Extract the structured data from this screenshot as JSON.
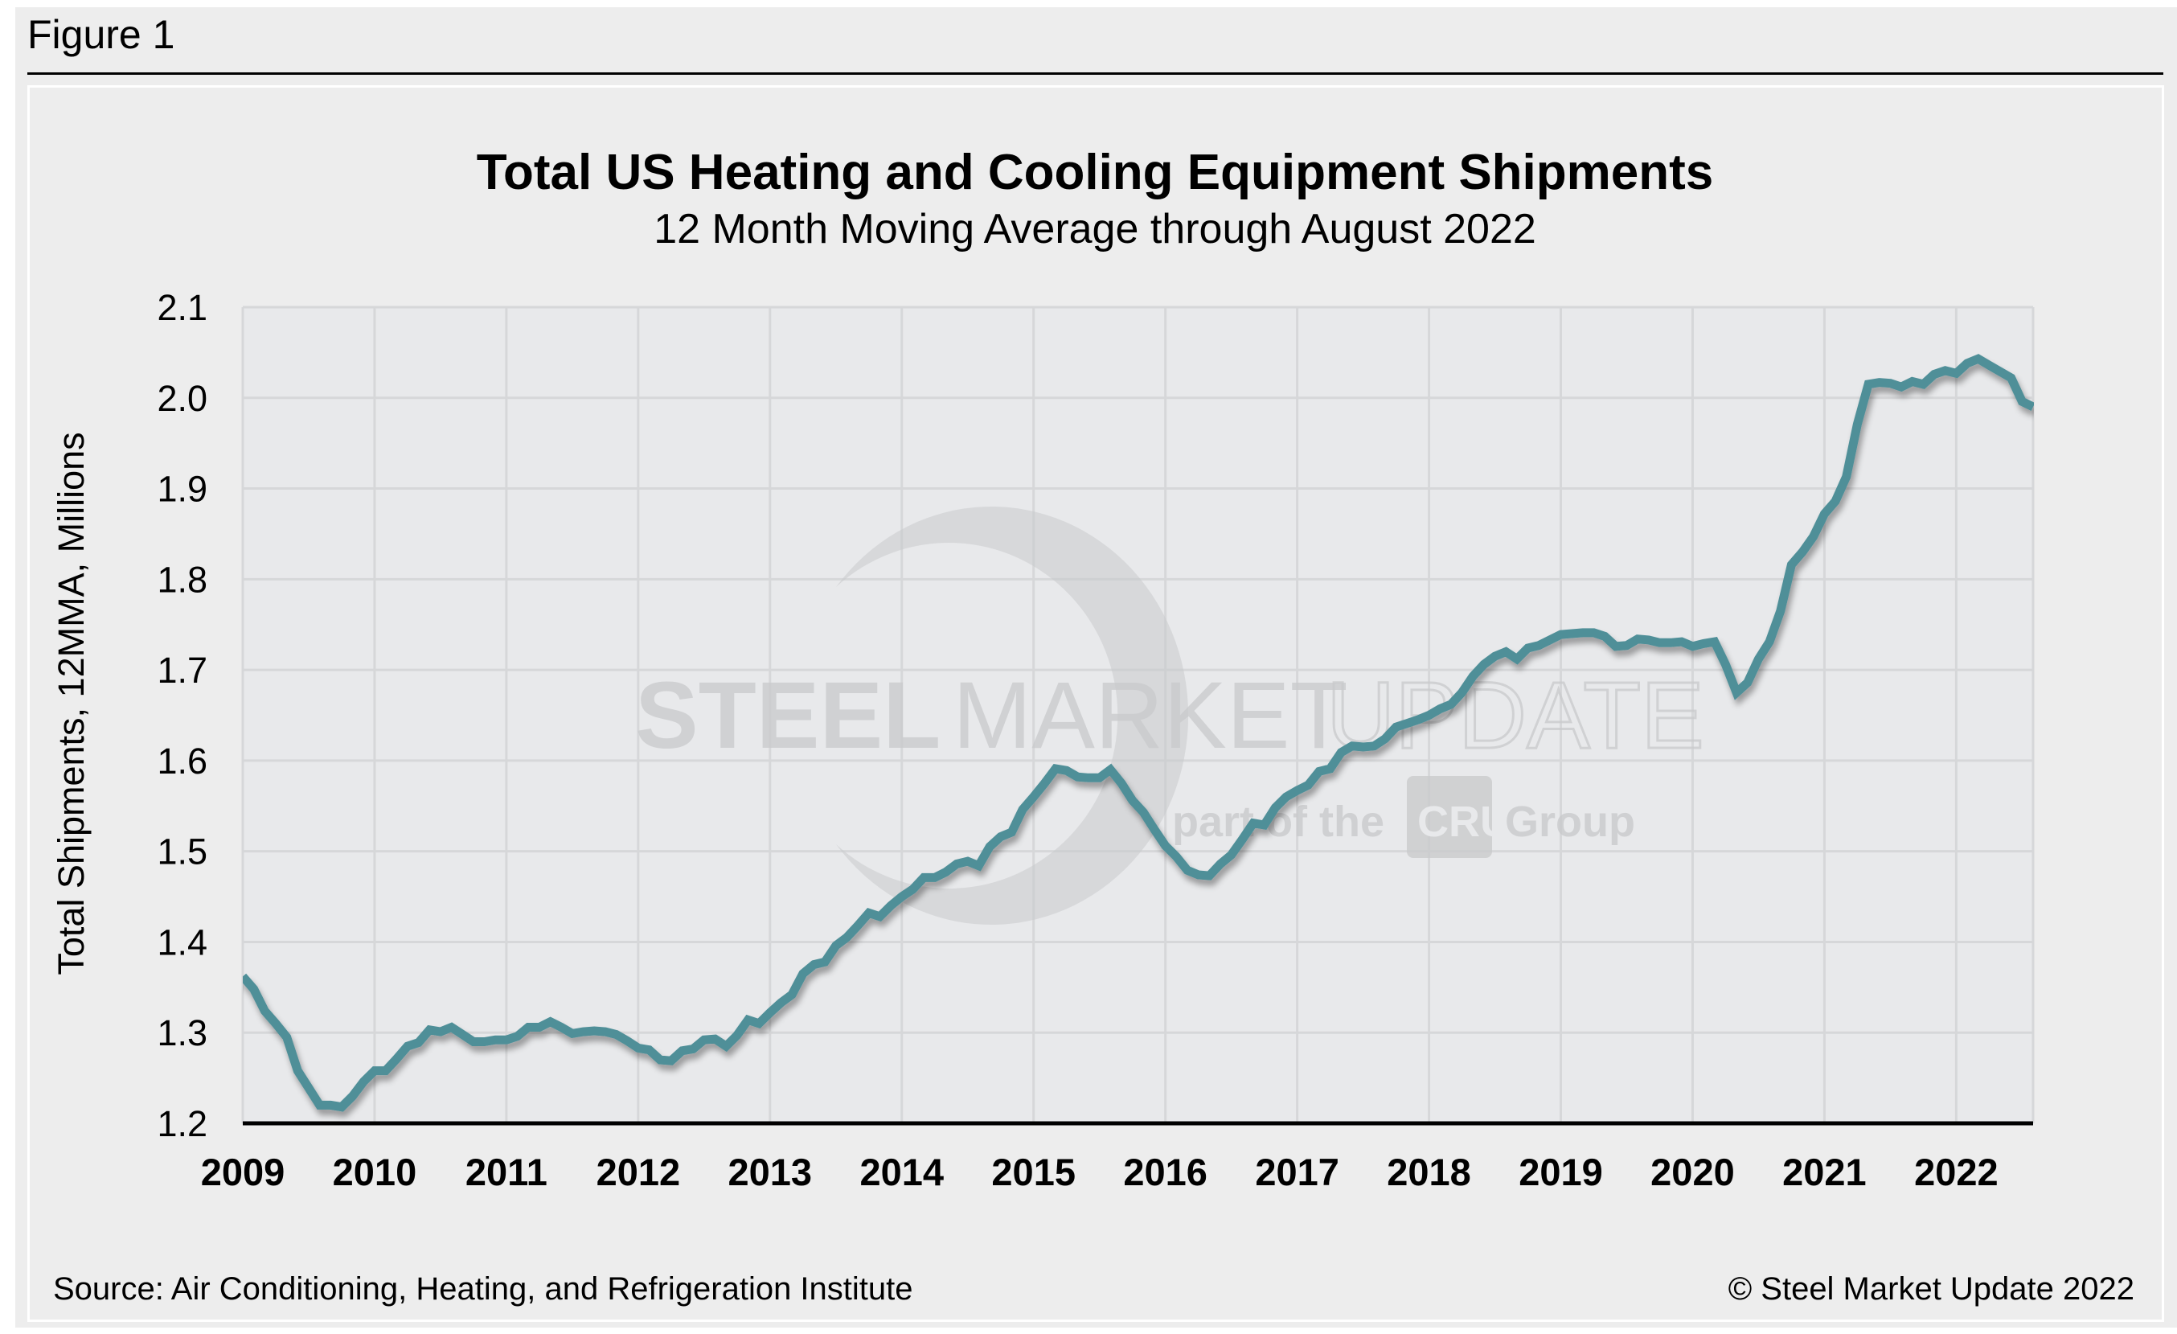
{
  "figure_label": "Figure 1",
  "chart_data": {
    "type": "line",
    "title": "Total US Heating and Cooling Equipment Shipments",
    "subtitle": "12 Month Moving Average through August 2022",
    "xlabel": "",
    "ylabel": "Total Shipments, 12MMA, Millions",
    "ylim": [
      1.2,
      2.1
    ],
    "yticks": [
      "2.1",
      "2.0",
      "1.9",
      "1.8",
      "1.7",
      "1.6",
      "1.5",
      "1.4",
      "1.3",
      "1.2"
    ],
    "ytick_values": [
      2.1,
      2.0,
      1.9,
      1.8,
      1.7,
      1.6,
      1.5,
      1.4,
      1.3,
      1.2
    ],
    "xticks": [
      "2009",
      "2010",
      "2011",
      "2012",
      "2013",
      "2014",
      "2015",
      "2016",
      "2017",
      "2018",
      "2019",
      "2020",
      "2021",
      "2022"
    ],
    "x_start": "2009-01",
    "x_end": "2022-08",
    "x_frequency": "monthly",
    "grid": true,
    "legend": "none",
    "line_color": "#4f8f98",
    "series": [
      {
        "name": "Total Shipments 12MMA",
        "values": [
          1.362,
          1.348,
          1.324,
          1.31,
          1.295,
          1.258,
          1.239,
          1.22,
          1.22,
          1.218,
          1.23,
          1.246,
          1.258,
          1.258,
          1.271,
          1.285,
          1.289,
          1.303,
          1.301,
          1.306,
          1.298,
          1.29,
          1.29,
          1.292,
          1.292,
          1.296,
          1.306,
          1.306,
          1.312,
          1.306,
          1.299,
          1.301,
          1.302,
          1.301,
          1.298,
          1.291,
          1.283,
          1.281,
          1.27,
          1.269,
          1.28,
          1.282,
          1.292,
          1.293,
          1.285,
          1.297,
          1.314,
          1.31,
          1.322,
          1.333,
          1.342,
          1.365,
          1.375,
          1.378,
          1.396,
          1.405,
          1.418,
          1.432,
          1.428,
          1.44,
          1.45,
          1.458,
          1.471,
          1.471,
          1.477,
          1.486,
          1.489,
          1.484,
          1.505,
          1.516,
          1.521,
          1.546,
          1.56,
          1.575,
          1.591,
          1.589,
          1.582,
          1.581,
          1.581,
          1.59,
          1.575,
          1.556,
          1.543,
          1.524,
          1.506,
          1.494,
          1.479,
          1.474,
          1.473,
          1.486,
          1.496,
          1.513,
          1.531,
          1.529,
          1.548,
          1.56,
          1.567,
          1.573,
          1.588,
          1.591,
          1.609,
          1.616,
          1.615,
          1.616,
          1.624,
          1.637,
          1.641,
          1.645,
          1.65,
          1.657,
          1.662,
          1.675,
          1.693,
          1.706,
          1.715,
          1.72,
          1.712,
          1.724,
          1.727,
          1.733,
          1.739,
          1.74,
          1.741,
          1.741,
          1.737,
          1.726,
          1.727,
          1.734,
          1.733,
          1.73,
          1.73,
          1.731,
          1.726,
          1.729,
          1.731,
          1.706,
          1.675,
          1.686,
          1.712,
          1.731,
          1.765,
          1.816,
          1.83,
          1.847,
          1.872,
          1.886,
          1.913,
          1.971,
          2.015,
          2.017,
          2.016,
          2.012,
          2.018,
          2.015,
          2.026,
          2.03,
          2.027,
          2.038,
          2.043,
          2.036,
          2.029,
          2.022,
          1.996,
          1.99
        ]
      }
    ]
  },
  "watermark": {
    "word1": "STEEL",
    "word2": "MARKET",
    "word3": "UPDATE",
    "tagline_pre": "part of the",
    "tagline_brand": "CRU",
    "tagline_post": "Group"
  },
  "footer": {
    "source": "Source: Air Conditioning, Heating, and Refrigeration Institute",
    "copyright": "© Steel Market Update 2022"
  }
}
